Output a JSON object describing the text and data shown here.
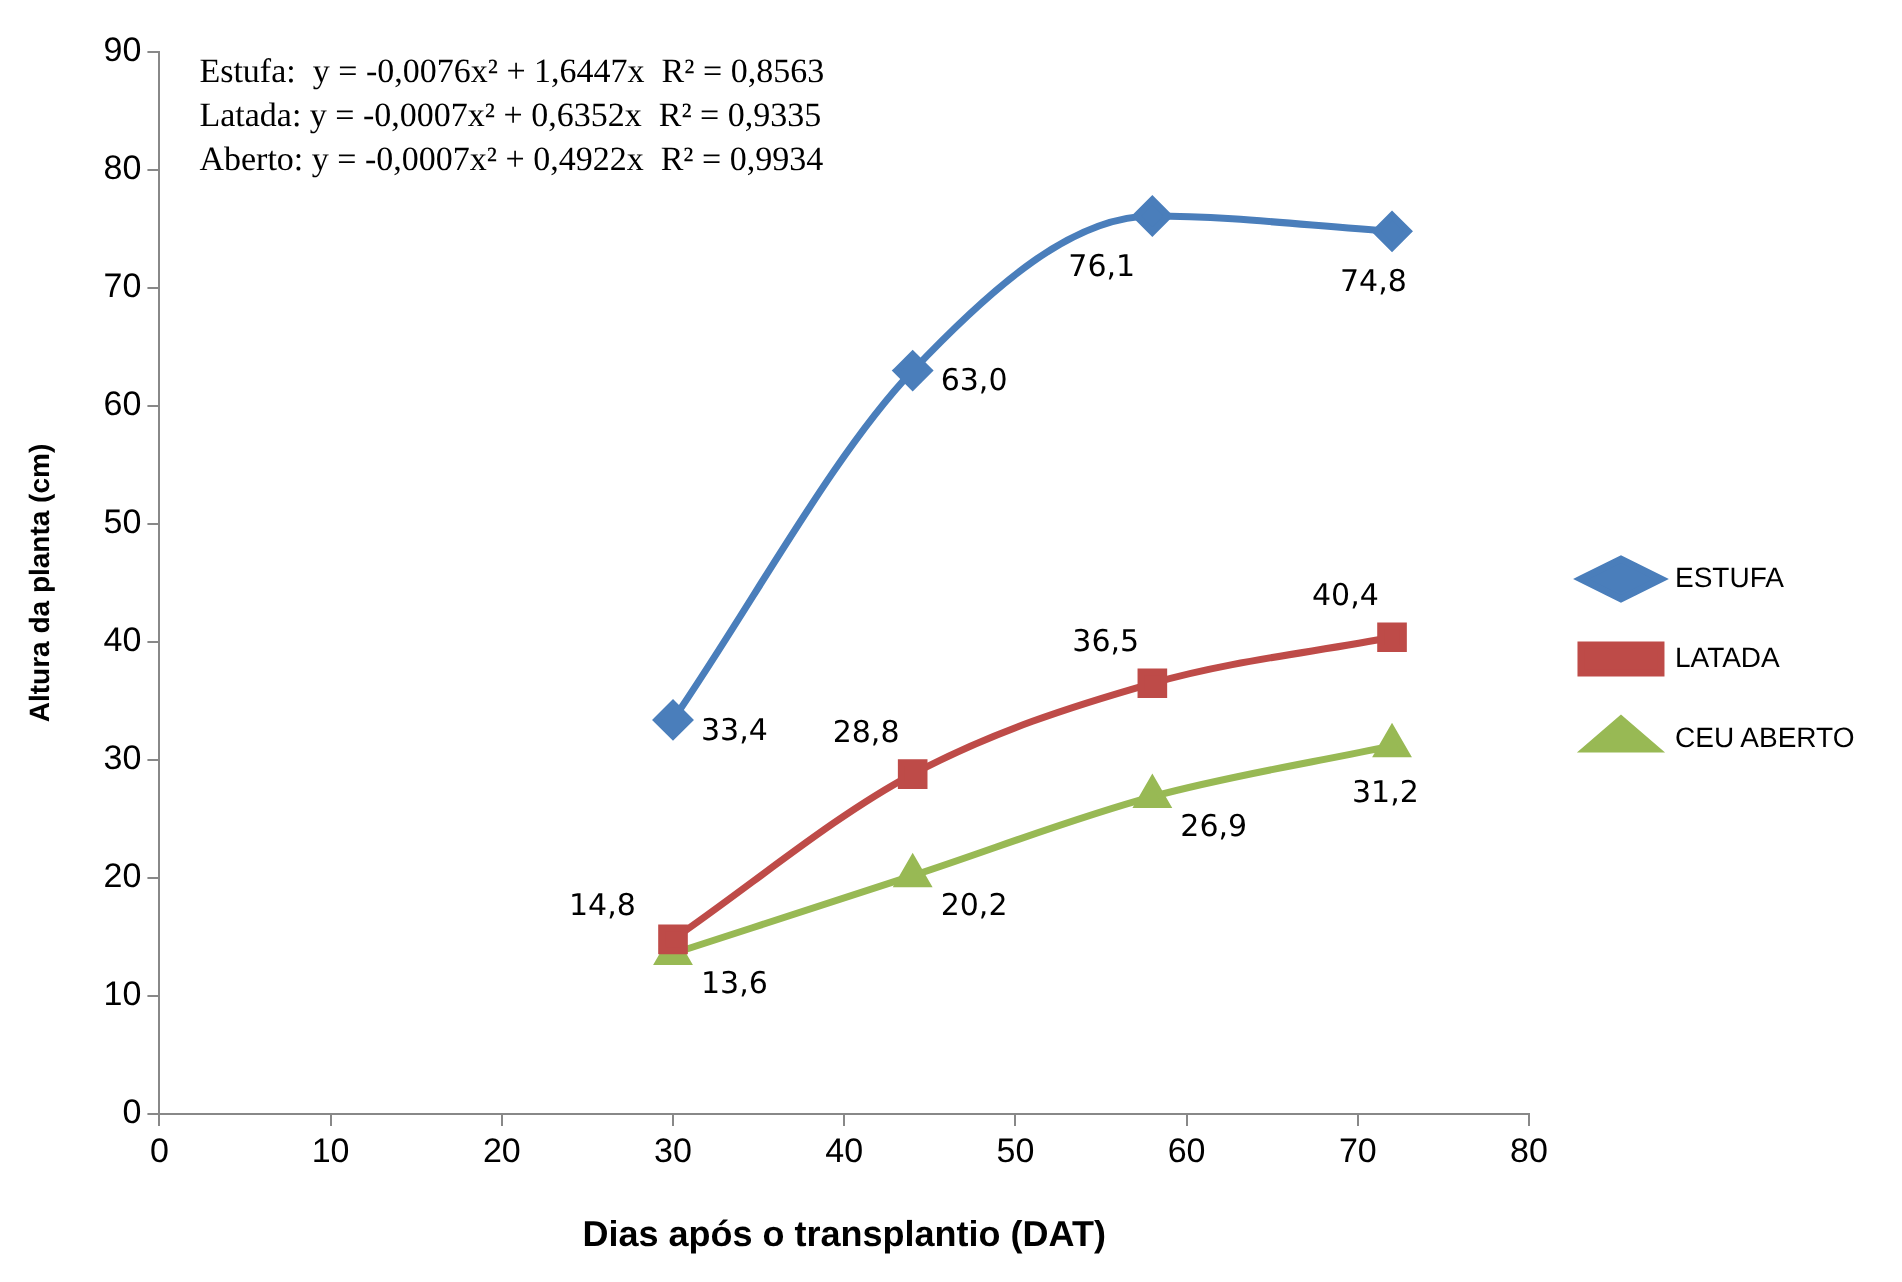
{
  "chart_data": {
    "type": "line",
    "xlabel": "Dias após o transplantio (DAT)",
    "ylabel": "Altura da planta (cm)",
    "x": [
      30,
      44,
      58,
      72
    ],
    "series": [
      {
        "name": "ESTUFA",
        "color": "#4a7ebb",
        "marker": "diamond",
        "values": [
          33.4,
          63.0,
          76.1,
          74.8
        ],
        "value_labels": [
          "33,4",
          "63,0",
          "76,1",
          "74,8"
        ]
      },
      {
        "name": "LATADA",
        "color": "#be4b48",
        "marker": "square",
        "values": [
          14.8,
          28.8,
          36.5,
          40.4
        ],
        "value_labels": [
          "14,8",
          "28,8",
          "36,5",
          "40,4"
        ]
      },
      {
        "name": "CEU ABERTO",
        "color": "#98b954",
        "marker": "triangle",
        "values": [
          13.6,
          20.2,
          26.9,
          31.2
        ],
        "value_labels": [
          "13,6",
          "20,2",
          "26,9",
          "31,2"
        ]
      }
    ],
    "xlim": [
      0,
      80
    ],
    "xticks": [
      0,
      10,
      20,
      30,
      40,
      50,
      60,
      70,
      80
    ],
    "ylim": [
      0,
      90
    ],
    "yticks": [
      0,
      10,
      20,
      30,
      40,
      50,
      60,
      70,
      80,
      90
    ],
    "grid": false,
    "legend": "right",
    "annotations": [
      "Estufa:  y = -0,0076x² + 1,6447x  R² = 0,8563",
      "Latada: y = -0,0007x² + 0,6352x  R² = 0,9335",
      "Aberto: y = -0,0007x² + 0,4922x  R² = 0,9934"
    ]
  }
}
